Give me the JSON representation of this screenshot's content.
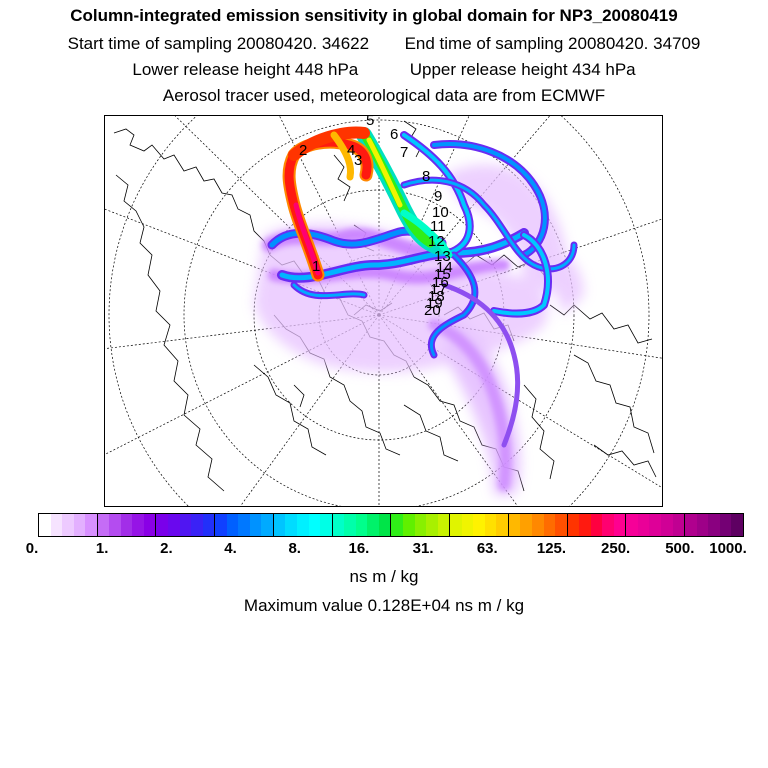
{
  "header": {
    "title": "Column-integrated emission sensitivity in global domain for NP3_20080419",
    "start_label": "Start time of sampling 20080420. 34622",
    "end_label": "End time of sampling 20080420. 34709",
    "lower_label": "Lower release height  448 hPa",
    "upper_label": "Upper release height  434 hPa",
    "aerosol_note": "Aerosol tracer used, meteorological data are from ECMWF"
  },
  "map": {
    "projection": "polar-stereographic",
    "trajectory_labels": [
      "1",
      "2",
      "3",
      "4",
      "5",
      "6",
      "7",
      "8",
      "9",
      "10",
      "11",
      "12",
      "13",
      "14",
      "15",
      "16",
      "17",
      "18",
      "19",
      "20"
    ],
    "label_color": "#000000"
  },
  "colorbar": {
    "colors": [
      "#ffffff",
      "#f6e3ff",
      "#edcaff",
      "#e3b0ff",
      "#d890ff",
      "#c56cf6",
      "#b44cf0",
      "#a22ee8",
      "#9614e6",
      "#8a00e6",
      "#7a00ea",
      "#6a08ee",
      "#5016f2",
      "#3a22f6",
      "#2230fa",
      "#1040ff",
      "#0060ff",
      "#0078ff",
      "#0092ff",
      "#00aaff",
      "#00c4ff",
      "#00dcff",
      "#00f0ff",
      "#00ffff",
      "#00ffe6",
      "#00ffc8",
      "#00ffaa",
      "#00ff8c",
      "#00f26a",
      "#00e448",
      "#30ee18",
      "#60f000",
      "#88f000",
      "#a8f000",
      "#c8f200",
      "#e0f400",
      "#f0f400",
      "#fff200",
      "#ffe000",
      "#ffcc00",
      "#ffb800",
      "#ffa000",
      "#ff8800",
      "#ff6c00",
      "#ff5000",
      "#ff3400",
      "#ff1a10",
      "#ff0040",
      "#ff0070",
      "#ff0090",
      "#f60098",
      "#ea0098",
      "#de0098",
      "#d00096",
      "#c00092",
      "#b0008e",
      "#9e0088",
      "#8a0080",
      "#740074",
      "#5e0062"
    ],
    "tick_labels": [
      "0.",
      "1.",
      "2.",
      "4.",
      "8.",
      "16.",
      "31.",
      "63.",
      "125.",
      "250.",
      "500.",
      "1000."
    ],
    "unit": "ns m / kg",
    "max_label": "Maximum value  0.128E+04 ns m / kg"
  }
}
